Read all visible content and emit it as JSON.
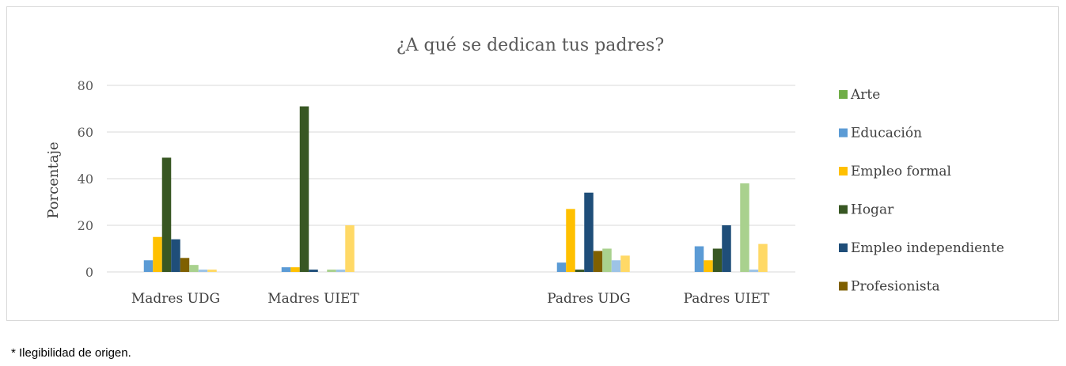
{
  "chart_data": {
    "type": "bar",
    "title": "¿A qué se dedican tus padres?",
    "xlabel": "",
    "ylabel": "Porcentaje",
    "ylim": [
      0,
      80
    ],
    "yticks": [
      "0",
      "20",
      "40",
      "60",
      "80"
    ],
    "grid": true,
    "legend_position": "right",
    "categories": [
      "Madres UDG",
      "Madres UIET",
      "",
      "Padres UDG",
      "Padres UIET"
    ],
    "series": [
      {
        "name": "Arte",
        "color": "#70ad47",
        "values": [
          0,
          0,
          0,
          0,
          0
        ]
      },
      {
        "name": "Educación",
        "color": "#5b9bd5",
        "values": [
          5,
          2,
          0,
          4,
          11
        ]
      },
      {
        "name": "Empleo formal",
        "color": "#ffc000",
        "values": [
          15,
          2,
          0,
          27,
          5
        ]
      },
      {
        "name": "Hogar",
        "color": "#385723",
        "values": [
          49,
          71,
          0,
          1,
          10
        ]
      },
      {
        "name": "Empleo independiente",
        "color": "#1f4e79",
        "values": [
          14,
          1,
          0,
          34,
          20
        ]
      },
      {
        "name": "Profesionista",
        "color": "#7f6000",
        "values": [
          6,
          0,
          0,
          9,
          0
        ]
      },
      {
        "name": "",
        "color": "#a9d18e",
        "values": [
          3,
          1,
          0,
          10,
          38
        ]
      },
      {
        "name": "",
        "color": "#9dc3e6",
        "values": [
          1,
          1,
          0,
          5,
          1
        ]
      },
      {
        "name": "",
        "color": "#ffd966",
        "values": [
          1,
          20,
          0,
          7,
          12
        ]
      }
    ]
  },
  "footnote": "* Ilegibilidad de origen."
}
